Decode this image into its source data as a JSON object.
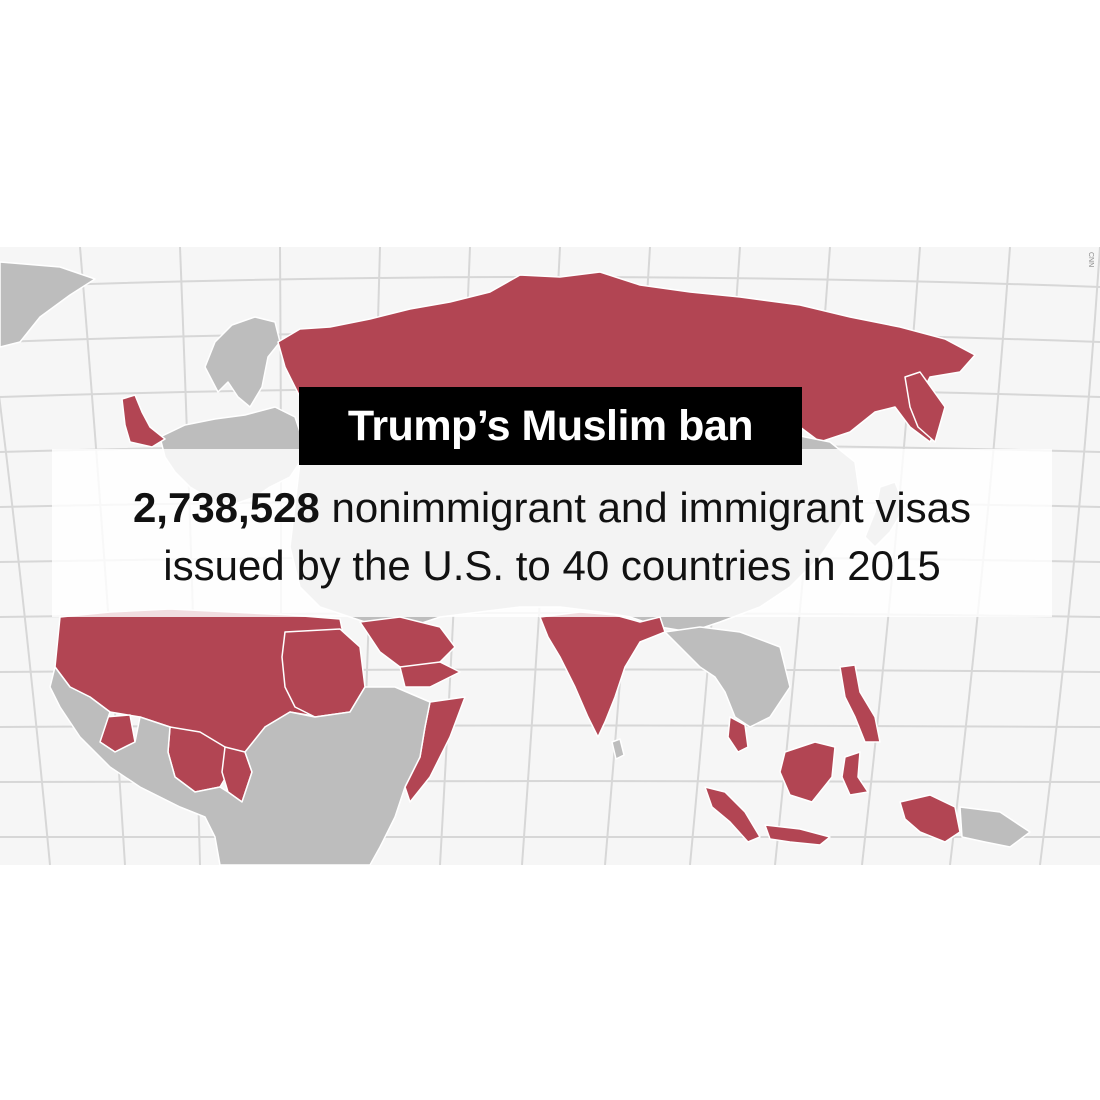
{
  "title": "Trump’s Muslim ban",
  "stat": {
    "number": "2,738,528",
    "line1_rest": " nonimmigrant and immigrant visas",
    "line2": "issued by the U.S. to 40 countries in 2015"
  },
  "watermark": "CNN",
  "map": {
    "highlight_color": "#b24553",
    "other_land_color": "#bdbdbd",
    "grid_color": "#d7d7d7",
    "background_color": "#f6f6f6"
  }
}
